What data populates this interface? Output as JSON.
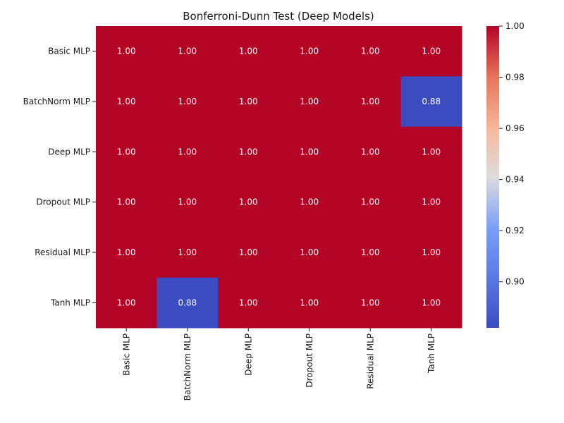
{
  "chart_data": {
    "type": "heatmap",
    "title": "Bonferroni-Dunn Test (Deep Models)",
    "rows": [
      "Basic MLP",
      "BatchNorm MLP",
      "Deep MLP",
      "Dropout MLP",
      "Residual MLP",
      "Tanh MLP"
    ],
    "columns": [
      "Basic MLP",
      "BatchNorm MLP",
      "Deep MLP",
      "Dropout MLP",
      "Residual MLP",
      "Tanh MLP"
    ],
    "values": [
      [
        1.0,
        1.0,
        1.0,
        1.0,
        1.0,
        1.0
      ],
      [
        1.0,
        1.0,
        1.0,
        1.0,
        1.0,
        0.88
      ],
      [
        1.0,
        1.0,
        1.0,
        1.0,
        1.0,
        1.0
      ],
      [
        1.0,
        1.0,
        1.0,
        1.0,
        1.0,
        1.0
      ],
      [
        1.0,
        1.0,
        1.0,
        1.0,
        1.0,
        1.0
      ],
      [
        1.0,
        0.88,
        1.0,
        1.0,
        1.0,
        1.0
      ]
    ],
    "colorbar": {
      "range": [
        0.882,
        1.0
      ],
      "ticks": [
        "0.90",
        "0.92",
        "0.94",
        "0.96",
        "0.98",
        "1.00"
      ],
      "colormap": "coolwarm"
    },
    "low_color": "#3b4cc0",
    "high_color": "#b40426"
  }
}
